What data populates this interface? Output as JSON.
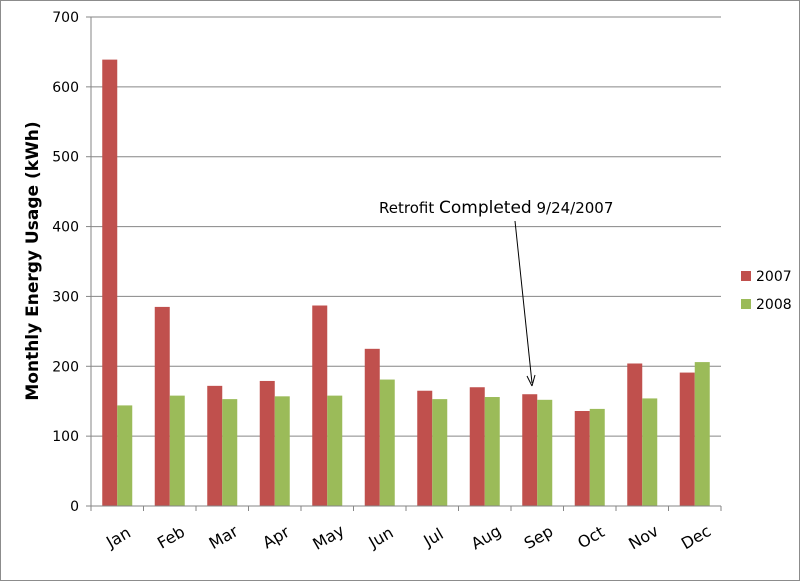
{
  "chart_data": {
    "type": "bar",
    "categories": [
      "Jan",
      "Feb",
      "Mar",
      "Apr",
      "May",
      "Jun",
      "Jul",
      "Aug",
      "Sep",
      "Oct",
      "Nov",
      "Dec"
    ],
    "series": [
      {
        "name": "2007",
        "color": "#c0504d",
        "values": [
          639,
          285,
          172,
          179,
          287,
          225,
          165,
          170,
          160,
          136,
          204,
          191
        ]
      },
      {
        "name": "2008",
        "color": "#9bbb59",
        "values": [
          144,
          158,
          153,
          157,
          158,
          181,
          153,
          156,
          152,
          139,
          154,
          206
        ]
      }
    ],
    "title": "",
    "xlabel": "",
    "ylabel": "Monthly Energy Usage (kWh)",
    "ylim": [
      0,
      700
    ],
    "yticks": [
      0,
      100,
      200,
      300,
      400,
      500,
      600,
      700
    ],
    "grid": true,
    "legend_position": "right",
    "annotation": {
      "text_prefix": "Retrofit ",
      "text_emph": "Completed",
      "text_suffix": " 9/24/2007",
      "points_to": "Sep"
    }
  }
}
